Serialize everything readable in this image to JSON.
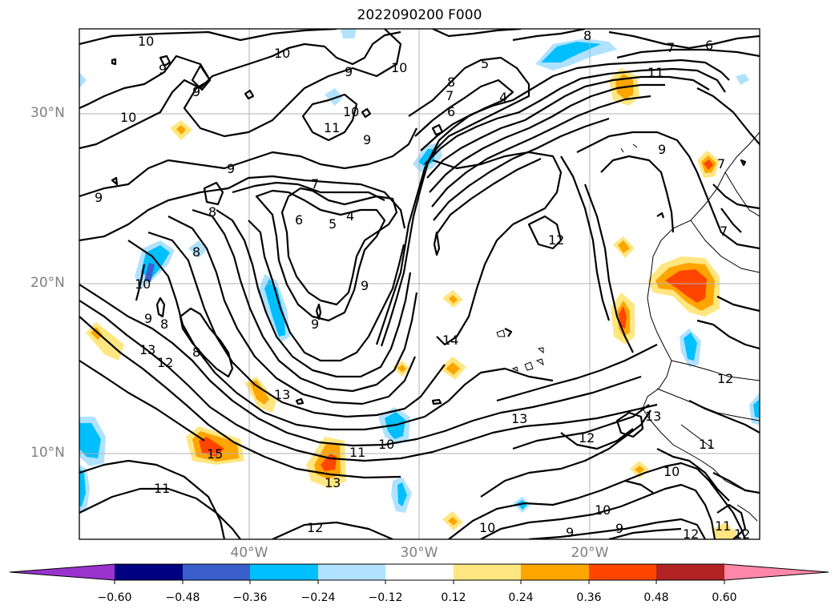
{
  "title": "2022090200 F000",
  "lat_labels": [
    "30°N",
    "20°N",
    "10°N"
  ],
  "lon_labels": [
    "40°W",
    "30°W",
    "20°W"
  ],
  "colorbar": {
    "ticks": [
      "−0.60",
      "−0.48",
      "−0.36",
      "−0.24",
      "−0.12",
      "0.12",
      "0.24",
      "0.36",
      "0.48",
      "0.60"
    ],
    "colors": [
      "#9933cc",
      "#000080",
      "#3a5fcd",
      "#00bfff",
      "#b0e2ff",
      "#ffffff",
      "#ffe680",
      "#ffa500",
      "#ff4500",
      "#b22222",
      "#ff88aa"
    ]
  },
  "contour_labels": [
    "10",
    "9",
    "9",
    "10",
    "9",
    "10",
    "5",
    "8",
    "7",
    "6",
    "4",
    "8",
    "7",
    "6",
    "11",
    "10",
    "9",
    "11",
    "10",
    "9",
    "7",
    "8",
    "9",
    "7",
    "6",
    "5",
    "4",
    "8",
    "10",
    "9",
    "8",
    "12",
    "9",
    "9",
    "8",
    "14",
    "13",
    "12",
    "13",
    "13",
    "15",
    "13",
    "11",
    "10",
    "11",
    "13",
    "12",
    "11",
    "10",
    "12",
    "10",
    "9",
    "9",
    "10",
    "12",
    "12",
    "11",
    "12",
    "9",
    "7"
  ]
}
